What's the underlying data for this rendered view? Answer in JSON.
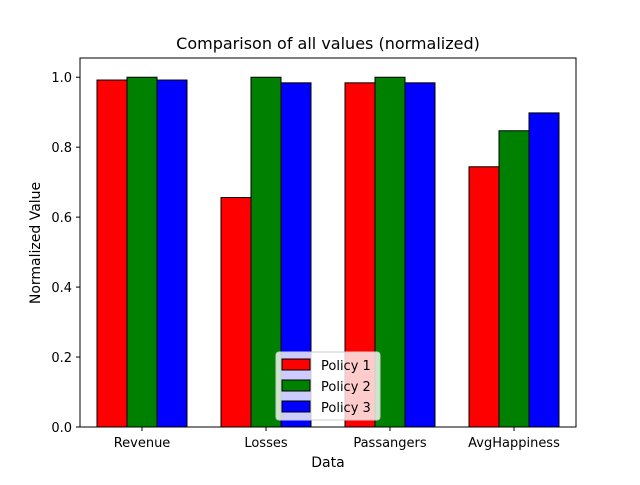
{
  "chart_data": {
    "type": "bar",
    "title": "Comparison of all values (normalized)",
    "xlabel": "Data",
    "ylabel": "Normalized Value",
    "categories": [
      "Revenue",
      "Losses",
      "Passangers",
      "AvgHappiness"
    ],
    "series": [
      {
        "name": "Policy 1",
        "color": "#ff0000",
        "values": [
          0.992,
          0.656,
          0.984,
          0.744
        ]
      },
      {
        "name": "Policy 2",
        "color": "#008000",
        "values": [
          1.0,
          1.0,
          1.0,
          0.847
        ]
      },
      {
        "name": "Policy 3",
        "color": "#0000ff",
        "values": [
          0.992,
          0.984,
          0.984,
          0.898
        ]
      }
    ],
    "ylim": [
      0,
      1.055
    ],
    "yticks": [
      0.0,
      0.2,
      0.4,
      0.6,
      0.8,
      1.0
    ],
    "ytick_labels": [
      "0.0",
      "0.2",
      "0.4",
      "0.6",
      "0.8",
      "1.0"
    ],
    "grid": false,
    "legend_position": "bottom-center"
  }
}
